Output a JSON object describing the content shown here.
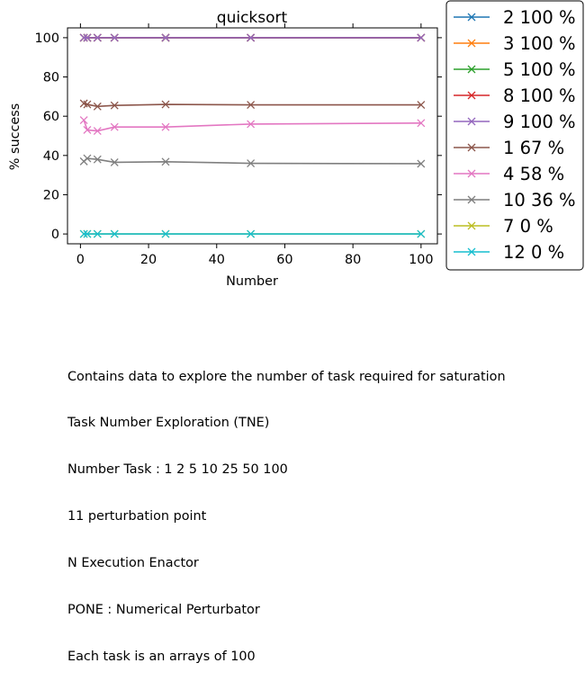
{
  "chart_data": {
    "type": "line",
    "title": "quicksort",
    "xlabel": "Number",
    "ylabel": "% success",
    "xlim": [
      -3.8,
      104.8
    ],
    "ylim": [
      -5,
      105
    ],
    "xticks": [
      0,
      20,
      40,
      60,
      80,
      100
    ],
    "yticks": [
      0,
      20,
      40,
      60,
      80,
      100
    ],
    "x": [
      1,
      2,
      5,
      10,
      25,
      50,
      100
    ],
    "legend_position": "outside-right",
    "series": [
      {
        "name": "2 100 %",
        "color": "#1f77b4",
        "values": [
          100,
          100,
          100,
          100,
          100,
          100,
          100
        ]
      },
      {
        "name": "3 100 %",
        "color": "#ff7f0e",
        "values": [
          100,
          100,
          100,
          100,
          100,
          100,
          100
        ]
      },
      {
        "name": "5 100 %",
        "color": "#2ca02c",
        "values": [
          100,
          100,
          100,
          100,
          100,
          100,
          100
        ]
      },
      {
        "name": "8 100 %",
        "color": "#d62728",
        "values": [
          100,
          100,
          100,
          100,
          100,
          100,
          100
        ]
      },
      {
        "name": "9 100 %",
        "color": "#9467bd",
        "values": [
          100,
          100,
          100,
          100,
          100,
          100,
          100
        ]
      },
      {
        "name": "1 67 %",
        "color": "#8c564b",
        "values": [
          66.5,
          66,
          65,
          65.5,
          66,
          65.8,
          65.8
        ]
      },
      {
        "name": "4 58 %",
        "color": "#e377c2",
        "values": [
          58,
          53,
          52.5,
          54.5,
          54.5,
          56,
          56.5
        ]
      },
      {
        "name": "10 36 %",
        "color": "#7f7f7f",
        "values": [
          37,
          38.5,
          38,
          36.5,
          36.8,
          36,
          35.8
        ]
      },
      {
        "name": "7 0 %",
        "color": "#bcbd22",
        "values": [
          0,
          0,
          0,
          0,
          0,
          0,
          0
        ]
      },
      {
        "name": "12 0 %",
        "color": "#17becf",
        "values": [
          0,
          0,
          0,
          0,
          0,
          0,
          0
        ]
      }
    ]
  },
  "caption_lines": [
    "Contains data to explore the number of task required for saturation",
    "Task Number Exploration (TNE)",
    "Number Task : 1 2 5 10 25 50 100",
    "11 perturbation point",
    "N Execution Enactor",
    "PONE : Numerical Perturbator",
    "Each task is an arrays of 100"
  ]
}
